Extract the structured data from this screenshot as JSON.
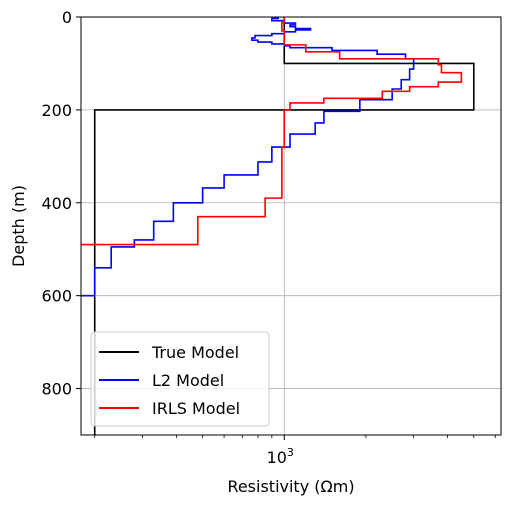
{
  "chart_data": {
    "type": "line",
    "xlabel": "Resistivity (Ωm)",
    "ylabel": "Depth (m)",
    "x_scale": "log",
    "xlim": [
      178,
      6300
    ],
    "ylim": [
      900,
      0
    ],
    "y_ticks": [
      0,
      200,
      400,
      600,
      800
    ],
    "x_ticks": [
      {
        "value": 1000,
        "base": "10",
        "exp": "3"
      }
    ],
    "grid": true,
    "legend_position": "lower-left",
    "series": [
      {
        "name": "True Model",
        "color": "#000000",
        "points": [
          [
            1000,
            0
          ],
          [
            1000,
            100
          ],
          [
            5000,
            100
          ],
          [
            5000,
            200
          ],
          [
            200,
            200
          ],
          [
            200,
            900
          ]
        ]
      },
      {
        "name": "L2 Model",
        "color": "#0000ff",
        "points": [
          [
            950,
            0
          ],
          [
            950,
            3
          ],
          [
            900,
            3
          ],
          [
            900,
            8
          ],
          [
            1000,
            8
          ],
          [
            1000,
            13
          ],
          [
            1100,
            13
          ],
          [
            1100,
            17
          ],
          [
            1050,
            17
          ],
          [
            1050,
            21
          ],
          [
            1100,
            21
          ],
          [
            1100,
            25
          ],
          [
            1250,
            25
          ],
          [
            1250,
            28
          ],
          [
            1100,
            28
          ],
          [
            1100,
            32
          ],
          [
            1000,
            32
          ],
          [
            1000,
            36
          ],
          [
            900,
            36
          ],
          [
            900,
            40
          ],
          [
            780,
            40
          ],
          [
            780,
            45
          ],
          [
            760,
            45
          ],
          [
            760,
            50
          ],
          [
            800,
            50
          ],
          [
            800,
            54
          ],
          [
            900,
            54
          ],
          [
            900,
            58
          ],
          [
            1000,
            58
          ],
          [
            1000,
            62
          ],
          [
            1050,
            62
          ],
          [
            1050,
            66
          ],
          [
            1500,
            66
          ],
          [
            1500,
            72
          ],
          [
            2200,
            72
          ],
          [
            2200,
            80
          ],
          [
            2800,
            80
          ],
          [
            2800,
            90
          ],
          [
            3000,
            90
          ],
          [
            3000,
            112
          ],
          [
            2900,
            112
          ],
          [
            2900,
            135
          ],
          [
            2700,
            135
          ],
          [
            2700,
            155
          ],
          [
            2500,
            155
          ],
          [
            2500,
            178
          ],
          [
            1900,
            178
          ],
          [
            1900,
            203
          ],
          [
            1400,
            203
          ],
          [
            1400,
            228
          ],
          [
            1300,
            228
          ],
          [
            1300,
            252
          ],
          [
            1050,
            252
          ],
          [
            1050,
            280
          ],
          [
            900,
            280
          ],
          [
            900,
            312
          ],
          [
            800,
            312
          ],
          [
            800,
            340
          ],
          [
            600,
            340
          ],
          [
            600,
            368
          ],
          [
            500,
            368
          ],
          [
            500,
            400
          ],
          [
            390,
            400
          ],
          [
            390,
            440
          ],
          [
            330,
            440
          ],
          [
            330,
            480
          ],
          [
            280,
            480
          ],
          [
            280,
            495
          ],
          [
            230,
            495
          ],
          [
            230,
            540
          ],
          [
            200,
            540
          ],
          [
            200,
            600
          ],
          [
            178,
            600
          ]
        ]
      },
      {
        "name": "IRLS Model",
        "color": "#ff0000",
        "points": [
          [
            1000,
            0
          ],
          [
            1000,
            12
          ],
          [
            980,
            12
          ],
          [
            980,
            30
          ],
          [
            1000,
            30
          ],
          [
            1000,
            45
          ],
          [
            1000,
            60
          ],
          [
            1200,
            60
          ],
          [
            1200,
            75
          ],
          [
            1600,
            75
          ],
          [
            1600,
            90
          ],
          [
            3700,
            90
          ],
          [
            3700,
            103
          ],
          [
            3800,
            103
          ],
          [
            3800,
            120
          ],
          [
            4500,
            120
          ],
          [
            4500,
            140
          ],
          [
            3700,
            140
          ],
          [
            3700,
            150
          ],
          [
            2900,
            150
          ],
          [
            2900,
            160
          ],
          [
            2300,
            160
          ],
          [
            2300,
            175
          ],
          [
            1400,
            175
          ],
          [
            1400,
            185
          ],
          [
            1050,
            185
          ],
          [
            1050,
            200
          ],
          [
            1000,
            200
          ],
          [
            1000,
            280
          ],
          [
            980,
            280
          ],
          [
            980,
            390
          ],
          [
            850,
            390
          ],
          [
            850,
            430
          ],
          [
            480,
            430
          ],
          [
            480,
            490
          ],
          [
            178,
            490
          ]
        ]
      }
    ]
  }
}
